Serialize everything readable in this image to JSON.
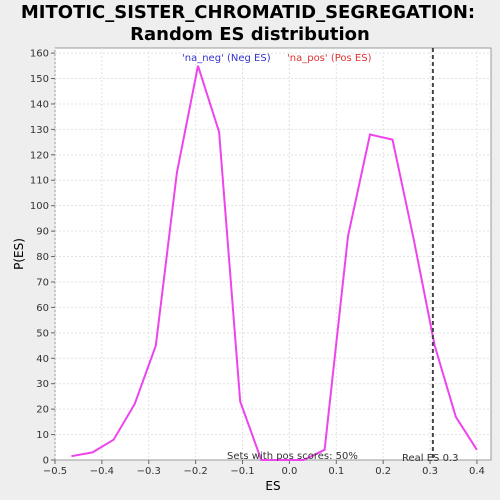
{
  "chart_data": {
    "type": "line",
    "title_line1": "MITOTIC_SISTER_CHROMATID_SEGREGATION:",
    "title_line2": "Random ES distribution",
    "xlabel": "ES",
    "ylabel": "P(ES)",
    "xlim": [
      -0.5,
      0.43
    ],
    "ylim": [
      0,
      162
    ],
    "x_ticks": [
      -0.5,
      -0.4,
      -0.3,
      -0.2,
      -0.1,
      0.0,
      0.1,
      0.2,
      0.3,
      0.4
    ],
    "x_tick_labels": [
      "−0.5",
      "−0.4",
      "−0.3",
      "−0.2",
      "−0.1",
      "0.0",
      "0.1",
      "0.2",
      "0.3",
      "0.4"
    ],
    "y_ticks": [
      0,
      10,
      20,
      30,
      40,
      50,
      60,
      70,
      80,
      90,
      100,
      110,
      120,
      130,
      140,
      150,
      160
    ],
    "grid": true,
    "legend": [
      {
        "label": "'na_neg' (Neg ES)",
        "color": "#3333cc"
      },
      {
        "label": "'na_pos' (Pos ES)",
        "color": "#dd3333"
      }
    ],
    "series": [
      {
        "color": "#ee44ee",
        "x": [
          -0.465,
          -0.42,
          -0.375,
          -0.33,
          -0.285,
          -0.24,
          -0.195,
          -0.15,
          -0.105,
          -0.06,
          -0.015,
          0.03,
          0.075,
          0.125,
          0.172,
          0.22,
          0.265,
          0.31,
          0.355,
          0.4
        ],
        "y": [
          1.5,
          3,
          8,
          22,
          45,
          113,
          155,
          129,
          23,
          0,
          0,
          0,
          4,
          88,
          128,
          126,
          87,
          45,
          17,
          4
        ]
      }
    ],
    "real_es": {
      "x": 0.306,
      "label": "Real ES 0.3",
      "color": "#444444"
    },
    "annotation": "Sets with pos scores: 50%"
  }
}
